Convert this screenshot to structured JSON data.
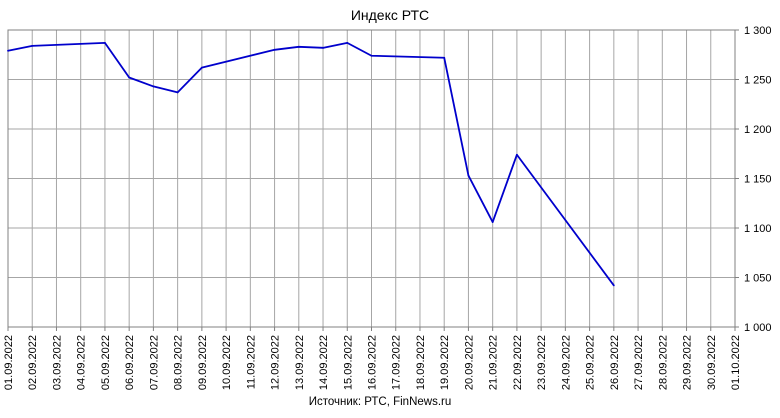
{
  "chart_data": {
    "type": "line",
    "title": "Индекс РТС",
    "source": "Источник: РТС, FinNews.ru",
    "x_tick_labels": [
      "01.09.2022",
      "02.09.2022",
      "03.09.2022",
      "04.09.2022",
      "05.09.2022",
      "06.09.2022",
      "07.09.2022",
      "08.09.2022",
      "09.09.2022",
      "10.09.2022",
      "11.09.2022",
      "12.09.2022",
      "13.09.2022",
      "14.09.2022",
      "15.09.2022",
      "16.09.2022",
      "17.09.2022",
      "18.09.2022",
      "19.09.2022",
      "20.09.2022",
      "21.09.2022",
      "22.09.2022",
      "23.09.2022",
      "24.09.2022",
      "25.09.2022",
      "26.09.2022",
      "27.09.2022",
      "28.09.2022",
      "29.09.2022",
      "30.09.2022",
      "01.10.2022"
    ],
    "y_tick_labels": [
      "1 000",
      "1 050",
      "1 100",
      "1 150",
      "1 200",
      "1 250",
      "1 300"
    ],
    "y_ticks": [
      1000,
      1050,
      1100,
      1150,
      1200,
      1250,
      1300
    ],
    "ylim": [
      1000,
      1300
    ],
    "grid": true,
    "y_axis_side": "right",
    "series": [
      {
        "color": "#0000cc",
        "points": [
          {
            "x": "01.09.2022",
            "y": 1279
          },
          {
            "x": "02.09.2022",
            "y": 1284
          },
          {
            "x": "05.09.2022",
            "y": 1287
          },
          {
            "x": "06.09.2022",
            "y": 1252
          },
          {
            "x": "07.09.2022",
            "y": 1243
          },
          {
            "x": "08.09.2022",
            "y": 1237
          },
          {
            "x": "09.09.2022",
            "y": 1262
          },
          {
            "x": "12.09.2022",
            "y": 1280
          },
          {
            "x": "13.09.2022",
            "y": 1283
          },
          {
            "x": "14.09.2022",
            "y": 1282
          },
          {
            "x": "15.09.2022",
            "y": 1287
          },
          {
            "x": "16.09.2022",
            "y": 1274
          },
          {
            "x": "19.09.2022",
            "y": 1272
          },
          {
            "x": "20.09.2022",
            "y": 1153
          },
          {
            "x": "21.09.2022",
            "y": 1106
          },
          {
            "x": "22.09.2022",
            "y": 1174
          },
          {
            "x": "26.09.2022",
            "y": 1042
          }
        ]
      }
    ]
  }
}
